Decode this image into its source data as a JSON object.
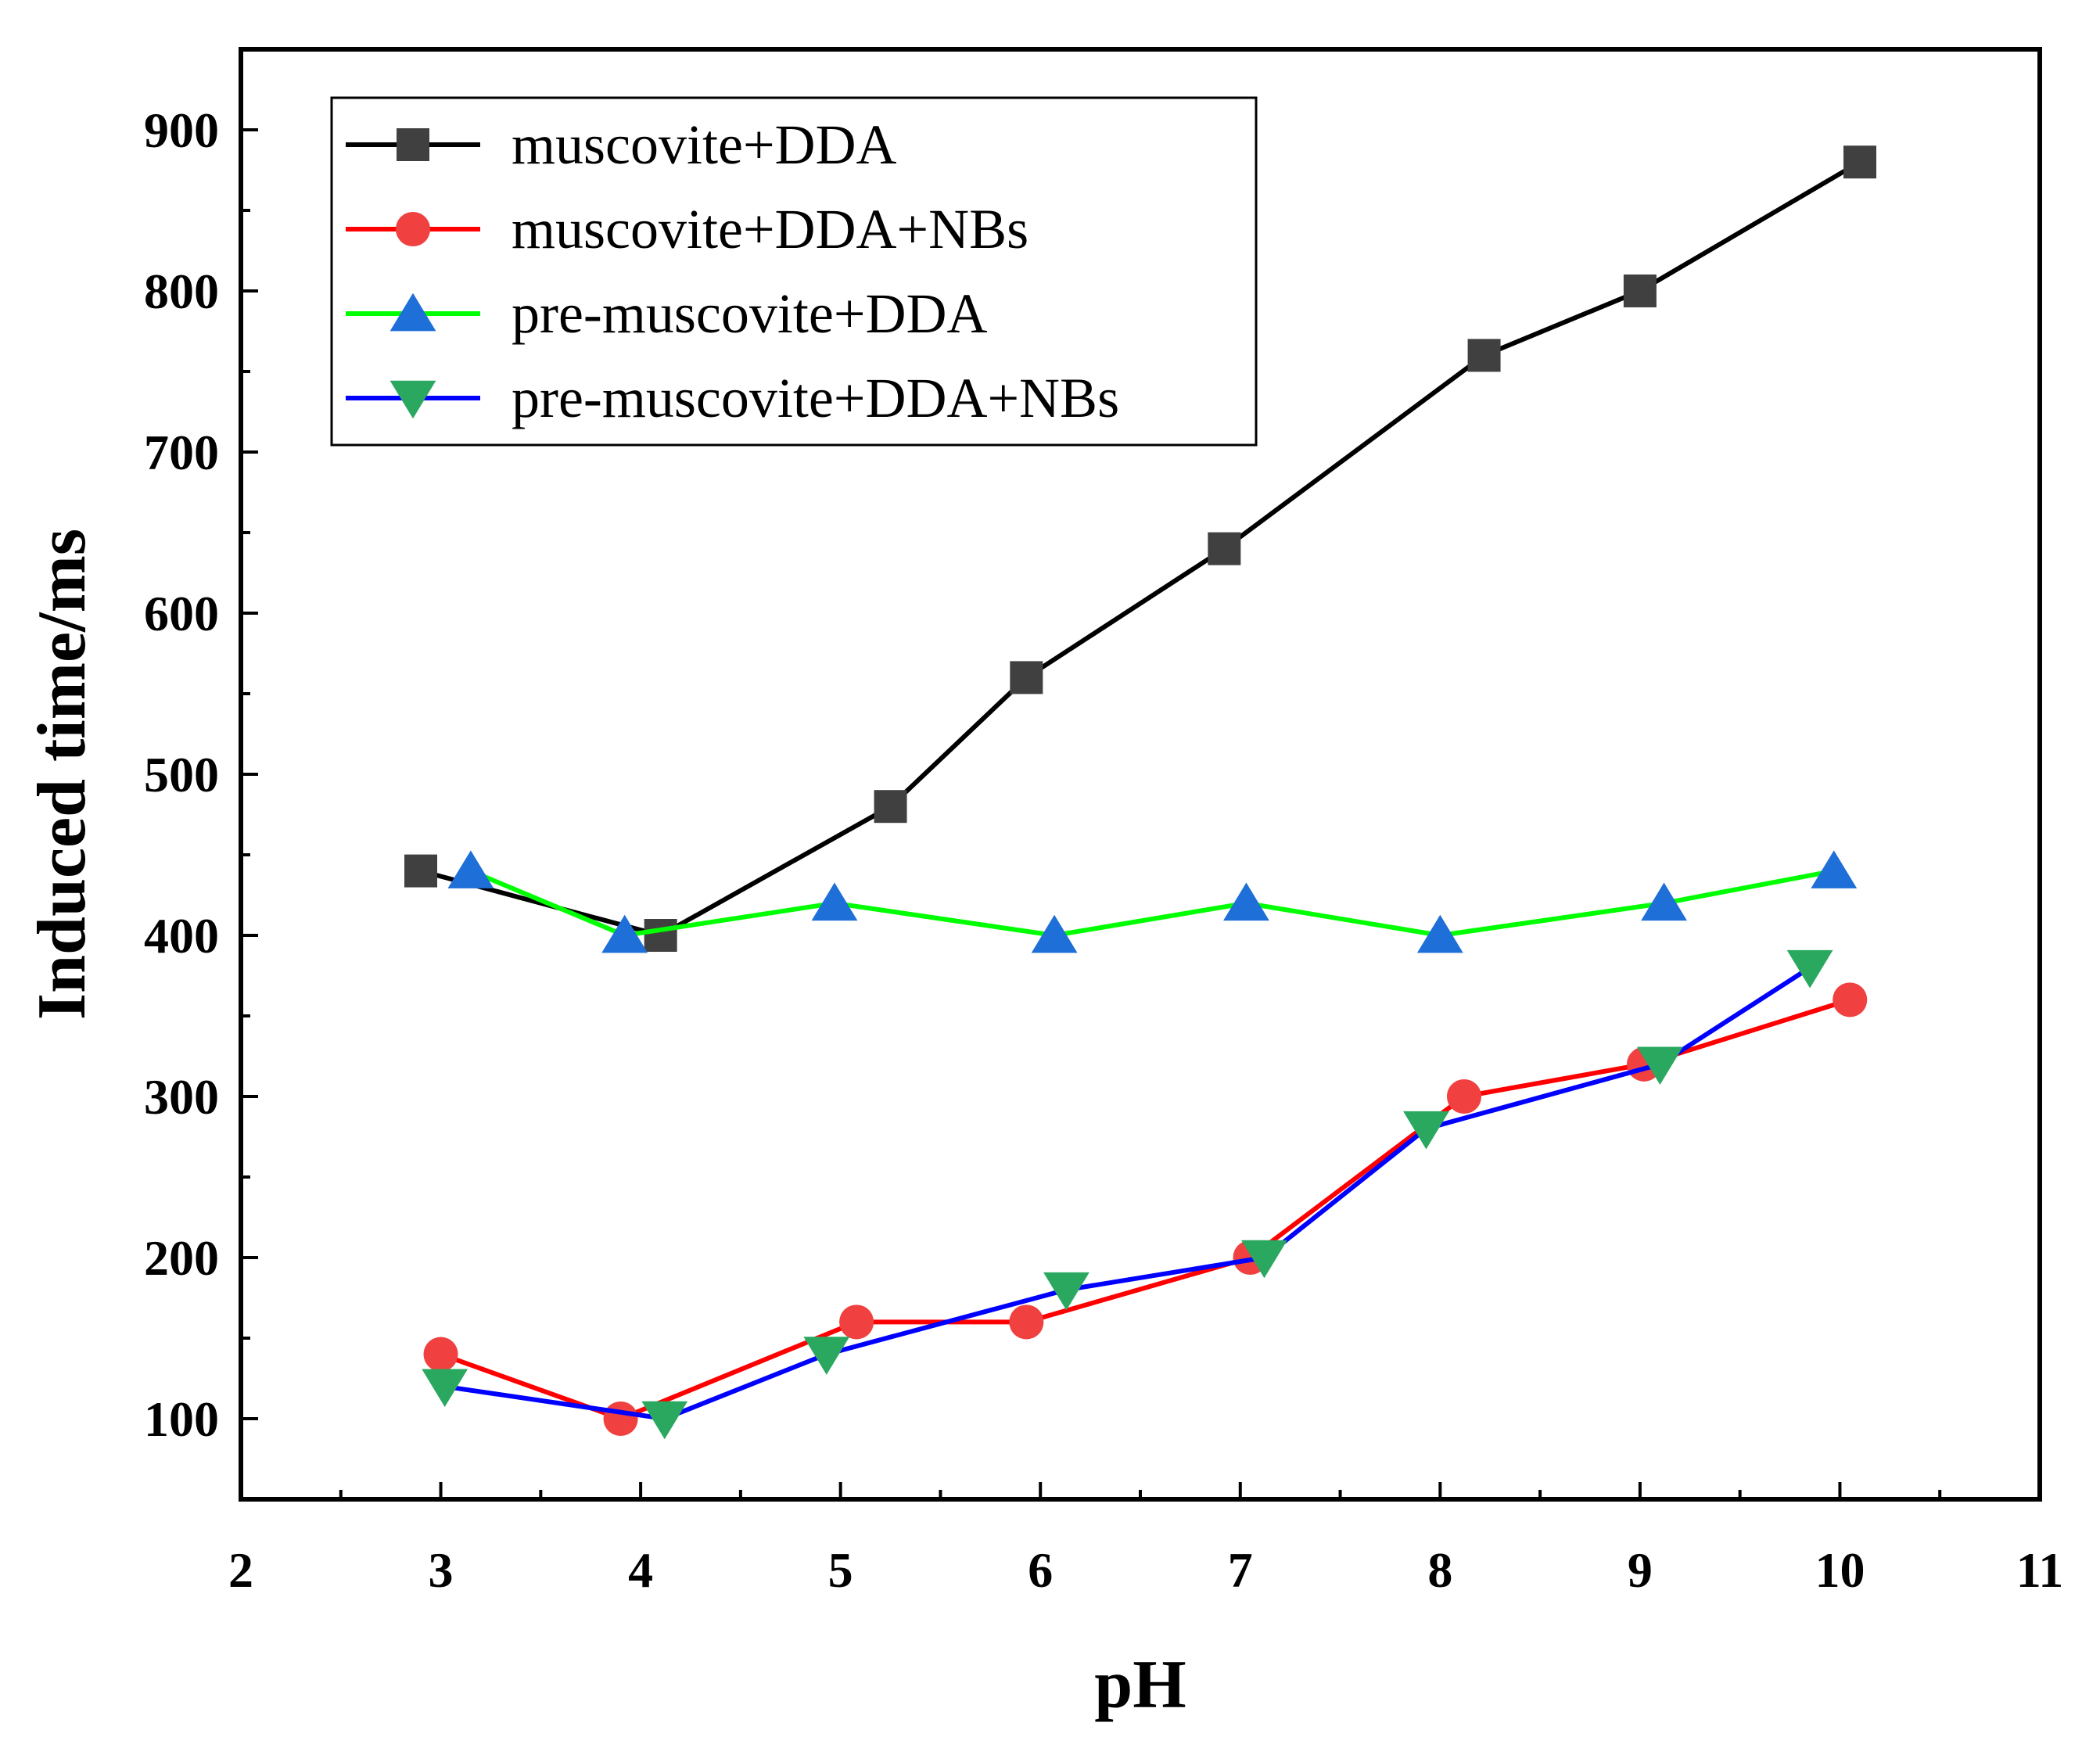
{
  "chart_data": {
    "type": "line",
    "title": "",
    "xlabel": "pH",
    "ylabel": "Induced time/ms",
    "xlim": [
      2,
      11
    ],
    "ylim": [
      50,
      950
    ],
    "xticks": [
      2,
      3,
      4,
      5,
      6,
      7,
      8,
      9,
      10,
      11
    ],
    "yticks": [
      100,
      200,
      300,
      400,
      500,
      600,
      700,
      800,
      900
    ],
    "xtick_labels": [
      "2",
      "3",
      "4",
      "5",
      "6",
      "7",
      "8",
      "9",
      "10",
      "11"
    ],
    "ytick_labels": [
      "100",
      "200",
      "300",
      "400",
      "500",
      "600",
      "700",
      "800",
      "900"
    ],
    "grid": false,
    "legend_position": "top-left",
    "series": [
      {
        "name": "muscovite+DDA",
        "line_color": "#000000",
        "marker": "square",
        "marker_color": "#404040",
        "x": [
          2.9,
          4.1,
          5.25,
          5.93,
          6.92,
          8.22,
          9.0,
          10.1
        ],
        "y": [
          440,
          400,
          480,
          560,
          640,
          760,
          800,
          880
        ]
      },
      {
        "name": "muscovite+DDA+NBs",
        "line_color": "#ff0000",
        "marker": "circle",
        "marker_color": "#f04040",
        "x": [
          3.0,
          3.9,
          5.08,
          5.93,
          7.05,
          8.12,
          9.02,
          10.05
        ],
        "y": [
          140,
          100,
          160,
          160,
          200,
          300,
          320,
          360
        ]
      },
      {
        "name": "pre-muscovite+DDA",
        "line_color": "#00ff00",
        "marker": "triangle-up",
        "marker_color": "#1f6fd8",
        "x": [
          3.15,
          3.92,
          4.97,
          6.07,
          7.03,
          8.0,
          9.12,
          9.97
        ],
        "y": [
          440,
          400,
          420,
          400,
          420,
          400,
          420,
          440
        ]
      },
      {
        "name": "pre-muscovite+DDA+NBs",
        "line_color": "#0000ff",
        "marker": "triangle-down",
        "marker_color": "#2aa860",
        "x": [
          3.02,
          4.12,
          4.93,
          6.13,
          7.12,
          7.93,
          9.1,
          9.85
        ],
        "y": [
          120,
          100,
          140,
          180,
          200,
          280,
          320,
          380
        ]
      }
    ]
  }
}
